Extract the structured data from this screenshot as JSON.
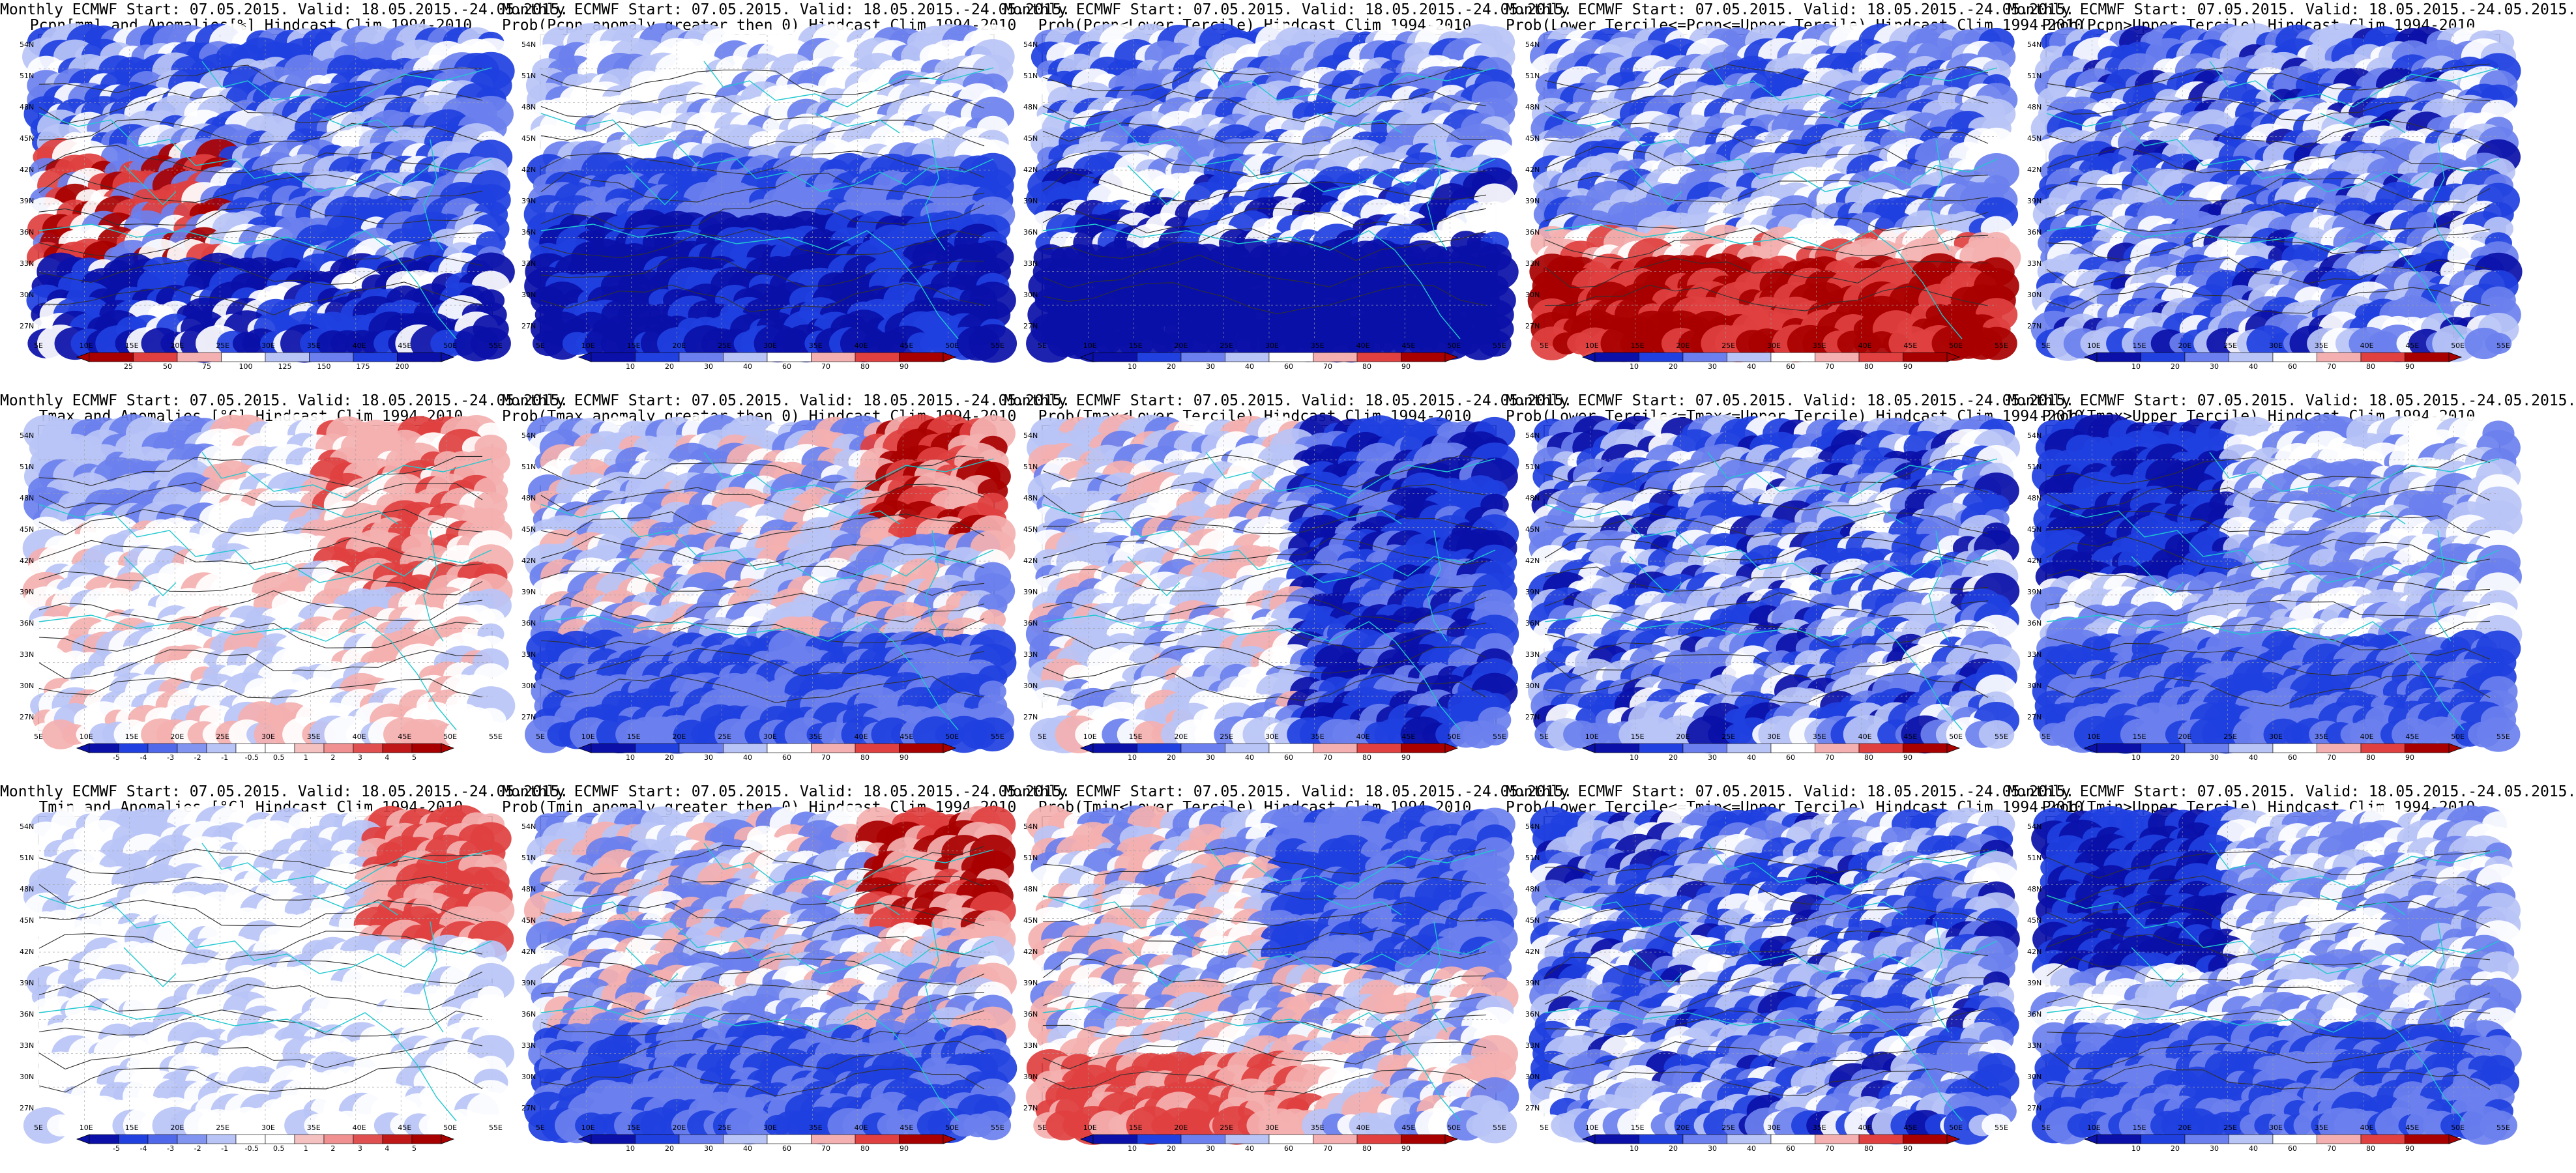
{
  "figure": {
    "panels": [
      {
        "id": "pcpn-anom",
        "line1": "Monthly ECMWF Start: 07.05.2015. Valid: 18.05.2015.-24.05.2015.",
        "line2": "Pcpn[mm] and Anomalies[%] Hindcast Clim 1994-2010",
        "palette": "anom-pcpn",
        "colorbar_ticks": [
          "25",
          "50",
          "75",
          "100",
          "125",
          "150",
          "175",
          "200"
        ]
      },
      {
        "id": "pcpn-prob-pos",
        "line1": "Monthly ECMWF Start: 07.05.2015. Valid: 18.05.2015.-24.05.2015.",
        "line2": "Prob(Pcpn anomaly greater then 0) Hindcast Clim 1994-2010",
        "palette": "prob-blue",
        "colorbar_ticks": [
          "10",
          "20",
          "30",
          "40",
          "60",
          "70",
          "80",
          "90"
        ]
      },
      {
        "id": "pcpn-prob-lower",
        "line1": "Monthly ECMWF Start: 07.05.2015. Valid: 18.05.2015.-24.05.2015.",
        "line2": "Prob(Pcpn<Lower Tercile) Hindcast Clim 1994-2010",
        "palette": "prob-blue-strong",
        "colorbar_ticks": [
          "10",
          "20",
          "30",
          "40",
          "60",
          "70",
          "80",
          "90"
        ]
      },
      {
        "id": "pcpn-prob-middle",
        "line1": "Monthly ECMWF Start: 07.05.2015. Valid: 18.05.2015.-24.05.2015.",
        "line2": "Prob(Lower Tercile<=Pcpn<=Upper Tercile) Hindcast Clim 1994-2010",
        "palette": "prob-red-south",
        "colorbar_ticks": [
          "10",
          "20",
          "30",
          "40",
          "60",
          "70",
          "80",
          "90"
        ]
      },
      {
        "id": "pcpn-prob-upper",
        "line1": "Monthly ECMWF Start: 07.05.2015. Valid: 18.05.2015.-24.05.2015.",
        "line2": "Prob(Pcpn>Upper Tercile) Hindcast Clim 1994-2010",
        "palette": "prob-blue-mixed",
        "colorbar_ticks": [
          "10",
          "20",
          "30",
          "40",
          "60",
          "70",
          "80",
          "90"
        ]
      },
      {
        "id": "tmax-anom",
        "line1": "Monthly ECMWF Start: 07.05.2015. Valid: 18.05.2015.-24.05.2015.",
        "line2": "Tmax and Anomalies [°C] Hindcast Clim 1994-2010",
        "palette": "anom-temp",
        "colorbar_ticks": [
          "-5",
          "-4",
          "-3",
          "-2",
          "-1",
          "-0.5",
          "0.5",
          "1",
          "2",
          "3",
          "4",
          "5"
        ]
      },
      {
        "id": "tmax-prob-pos",
        "line1": "Monthly ECMWF Start: 07.05.2015. Valid: 18.05.2015.-24.05.2015.",
        "line2": "Prob(Tmax anomaly greater then 0) Hindcast Clim 1994-2010",
        "palette": "prob-red-east",
        "colorbar_ticks": [
          "10",
          "20",
          "30",
          "40",
          "60",
          "70",
          "80",
          "90"
        ]
      },
      {
        "id": "tmax-prob-lower",
        "line1": "Monthly ECMWF Start: 07.05.2015. Valid: 18.05.2015.-24.05.2015.",
        "line2": "Prob(Tmax<Lower Tercile) Hindcast Clim 1994-2010",
        "palette": "prob-blue-east",
        "colorbar_ticks": [
          "10",
          "20",
          "30",
          "40",
          "60",
          "70",
          "80",
          "90"
        ]
      },
      {
        "id": "tmax-prob-middle",
        "line1": "Monthly ECMWF Start: 07.05.2015. Valid: 18.05.2015.-24.05.2015.",
        "line2": "Prob(Lower Tercile<=Tmax<=Upper Tercile) Hindcast Clim 1994-2010",
        "palette": "prob-blue-mixed",
        "colorbar_ticks": [
          "10",
          "20",
          "30",
          "40",
          "60",
          "70",
          "80",
          "90"
        ]
      },
      {
        "id": "tmax-prob-upper",
        "line1": "Monthly ECMWF Start: 07.05.2015. Valid: 18.05.2015.-24.05.2015.",
        "line2": "Prob(Tmax>Upper Tercile) Hindcast Clim 1994-2010",
        "palette": "prob-blue-west",
        "colorbar_ticks": [
          "10",
          "20",
          "30",
          "40",
          "60",
          "70",
          "80",
          "90"
        ]
      },
      {
        "id": "tmin-anom",
        "line1": "Monthly ECMWF Start: 07.05.2015. Valid: 18.05.2015.-24.05.2015.",
        "line2": "Tmin and Anomalies [°C] Hindcast Clim 1994-2010",
        "palette": "anom-temp-light",
        "colorbar_ticks": [
          "-5",
          "-4",
          "-3",
          "-2",
          "-1",
          "-0.5",
          "0.5",
          "1",
          "2",
          "3",
          "4",
          "5"
        ]
      },
      {
        "id": "tmin-prob-pos",
        "line1": "Monthly ECMWF Start: 07.05.2015. Valid: 18.05.2015.-24.05.2015.",
        "line2": "Prob(Tmin anomaly greater then 0) Hindcast Clim 1994-2010",
        "palette": "prob-red-east",
        "colorbar_ticks": [
          "10",
          "20",
          "30",
          "40",
          "60",
          "70",
          "80",
          "90"
        ]
      },
      {
        "id": "tmin-prob-lower",
        "line1": "Monthly ECMWF Start: 07.05.2015. Valid: 18.05.2015.-24.05.2015.",
        "line2": "Prob(Tmin<Lower Tercile) Hindcast Clim 1994-2010",
        "palette": "prob-red-west",
        "colorbar_ticks": [
          "10",
          "20",
          "30",
          "40",
          "60",
          "70",
          "80",
          "90"
        ]
      },
      {
        "id": "tmin-prob-middle",
        "line1": "Monthly ECMWF Start: 07.05.2015. Valid: 18.05.2015.-24.05.2015.",
        "line2": "Prob(Lower Tercile<=Tmin<=Upper Tercile) Hindcast Clim 1994-2010",
        "palette": "prob-blue-mixed",
        "colorbar_ticks": [
          "10",
          "20",
          "30",
          "40",
          "60",
          "70",
          "80",
          "90"
        ]
      },
      {
        "id": "tmin-prob-upper",
        "line1": "Monthly ECMWF Start: 07.05.2015. Valid: 18.05.2015.-24.05.2015.",
        "line2": "Prob(Tmin>Upper Tercile) Hindcast Clim 1994-2010",
        "palette": "prob-blue-west",
        "colorbar_ticks": [
          "10",
          "20",
          "30",
          "40",
          "60",
          "70",
          "80",
          "90"
        ]
      }
    ],
    "lon_labels": [
      "5E",
      "10E",
      "15E",
      "20E",
      "25E",
      "30E",
      "35E",
      "40E",
      "45E",
      "50E",
      "55E"
    ],
    "lat_labels": [
      "54N",
      "51N",
      "48N",
      "45N",
      "42N",
      "39N",
      "36N",
      "33N",
      "30N",
      "27N"
    ],
    "colors": {
      "dark_blue": "#0a10a8",
      "blue": "#2040e0",
      "mid_blue": "#6b80ee",
      "light_blue": "#b8c4f6",
      "white": "#ffffff",
      "light_red": "#f4b0b0",
      "red": "#e04040",
      "dark_red": "#a80000",
      "coast": "#20c8d0",
      "contour": "#303030"
    }
  }
}
